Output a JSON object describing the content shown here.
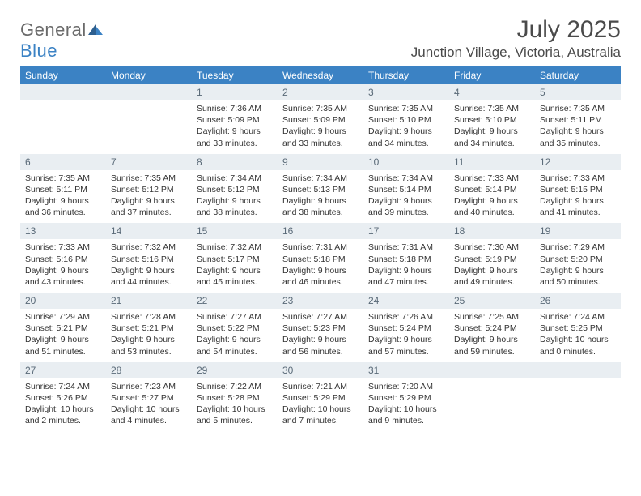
{
  "brand": {
    "general": "General",
    "blue": "Blue"
  },
  "title": "July 2025",
  "location": "Junction Village, Victoria, Australia",
  "colors": {
    "header_bg": "#3b82c4",
    "header_text": "#ffffff",
    "daynum_bg": "#e9eef2",
    "daynum_text": "#5a6a78",
    "body_text": "#333333"
  },
  "day_headers": [
    "Sunday",
    "Monday",
    "Tuesday",
    "Wednesday",
    "Thursday",
    "Friday",
    "Saturday"
  ],
  "weeks": [
    [
      null,
      null,
      {
        "n": "1",
        "sr": "7:36 AM",
        "ss": "5:09 PM",
        "dl": "9 hours and 33 minutes."
      },
      {
        "n": "2",
        "sr": "7:35 AM",
        "ss": "5:09 PM",
        "dl": "9 hours and 33 minutes."
      },
      {
        "n": "3",
        "sr": "7:35 AM",
        "ss": "5:10 PM",
        "dl": "9 hours and 34 minutes."
      },
      {
        "n": "4",
        "sr": "7:35 AM",
        "ss": "5:10 PM",
        "dl": "9 hours and 34 minutes."
      },
      {
        "n": "5",
        "sr": "7:35 AM",
        "ss": "5:11 PM",
        "dl": "9 hours and 35 minutes."
      }
    ],
    [
      {
        "n": "6",
        "sr": "7:35 AM",
        "ss": "5:11 PM",
        "dl": "9 hours and 36 minutes."
      },
      {
        "n": "7",
        "sr": "7:35 AM",
        "ss": "5:12 PM",
        "dl": "9 hours and 37 minutes."
      },
      {
        "n": "8",
        "sr": "7:34 AM",
        "ss": "5:12 PM",
        "dl": "9 hours and 38 minutes."
      },
      {
        "n": "9",
        "sr": "7:34 AM",
        "ss": "5:13 PM",
        "dl": "9 hours and 38 minutes."
      },
      {
        "n": "10",
        "sr": "7:34 AM",
        "ss": "5:14 PM",
        "dl": "9 hours and 39 minutes."
      },
      {
        "n": "11",
        "sr": "7:33 AM",
        "ss": "5:14 PM",
        "dl": "9 hours and 40 minutes."
      },
      {
        "n": "12",
        "sr": "7:33 AM",
        "ss": "5:15 PM",
        "dl": "9 hours and 41 minutes."
      }
    ],
    [
      {
        "n": "13",
        "sr": "7:33 AM",
        "ss": "5:16 PM",
        "dl": "9 hours and 43 minutes."
      },
      {
        "n": "14",
        "sr": "7:32 AM",
        "ss": "5:16 PM",
        "dl": "9 hours and 44 minutes."
      },
      {
        "n": "15",
        "sr": "7:32 AM",
        "ss": "5:17 PM",
        "dl": "9 hours and 45 minutes."
      },
      {
        "n": "16",
        "sr": "7:31 AM",
        "ss": "5:18 PM",
        "dl": "9 hours and 46 minutes."
      },
      {
        "n": "17",
        "sr": "7:31 AM",
        "ss": "5:18 PM",
        "dl": "9 hours and 47 minutes."
      },
      {
        "n": "18",
        "sr": "7:30 AM",
        "ss": "5:19 PM",
        "dl": "9 hours and 49 minutes."
      },
      {
        "n": "19",
        "sr": "7:29 AM",
        "ss": "5:20 PM",
        "dl": "9 hours and 50 minutes."
      }
    ],
    [
      {
        "n": "20",
        "sr": "7:29 AM",
        "ss": "5:21 PM",
        "dl": "9 hours and 51 minutes."
      },
      {
        "n": "21",
        "sr": "7:28 AM",
        "ss": "5:21 PM",
        "dl": "9 hours and 53 minutes."
      },
      {
        "n": "22",
        "sr": "7:27 AM",
        "ss": "5:22 PM",
        "dl": "9 hours and 54 minutes."
      },
      {
        "n": "23",
        "sr": "7:27 AM",
        "ss": "5:23 PM",
        "dl": "9 hours and 56 minutes."
      },
      {
        "n": "24",
        "sr": "7:26 AM",
        "ss": "5:24 PM",
        "dl": "9 hours and 57 minutes."
      },
      {
        "n": "25",
        "sr": "7:25 AM",
        "ss": "5:24 PM",
        "dl": "9 hours and 59 minutes."
      },
      {
        "n": "26",
        "sr": "7:24 AM",
        "ss": "5:25 PM",
        "dl": "10 hours and 0 minutes."
      }
    ],
    [
      {
        "n": "27",
        "sr": "7:24 AM",
        "ss": "5:26 PM",
        "dl": "10 hours and 2 minutes."
      },
      {
        "n": "28",
        "sr": "7:23 AM",
        "ss": "5:27 PM",
        "dl": "10 hours and 4 minutes."
      },
      {
        "n": "29",
        "sr": "7:22 AM",
        "ss": "5:28 PM",
        "dl": "10 hours and 5 minutes."
      },
      {
        "n": "30",
        "sr": "7:21 AM",
        "ss": "5:29 PM",
        "dl": "10 hours and 7 minutes."
      },
      {
        "n": "31",
        "sr": "7:20 AM",
        "ss": "5:29 PM",
        "dl": "10 hours and 9 minutes."
      },
      null,
      null
    ]
  ],
  "labels": {
    "sunrise": "Sunrise:",
    "sunset": "Sunset:",
    "daylight": "Daylight:"
  }
}
